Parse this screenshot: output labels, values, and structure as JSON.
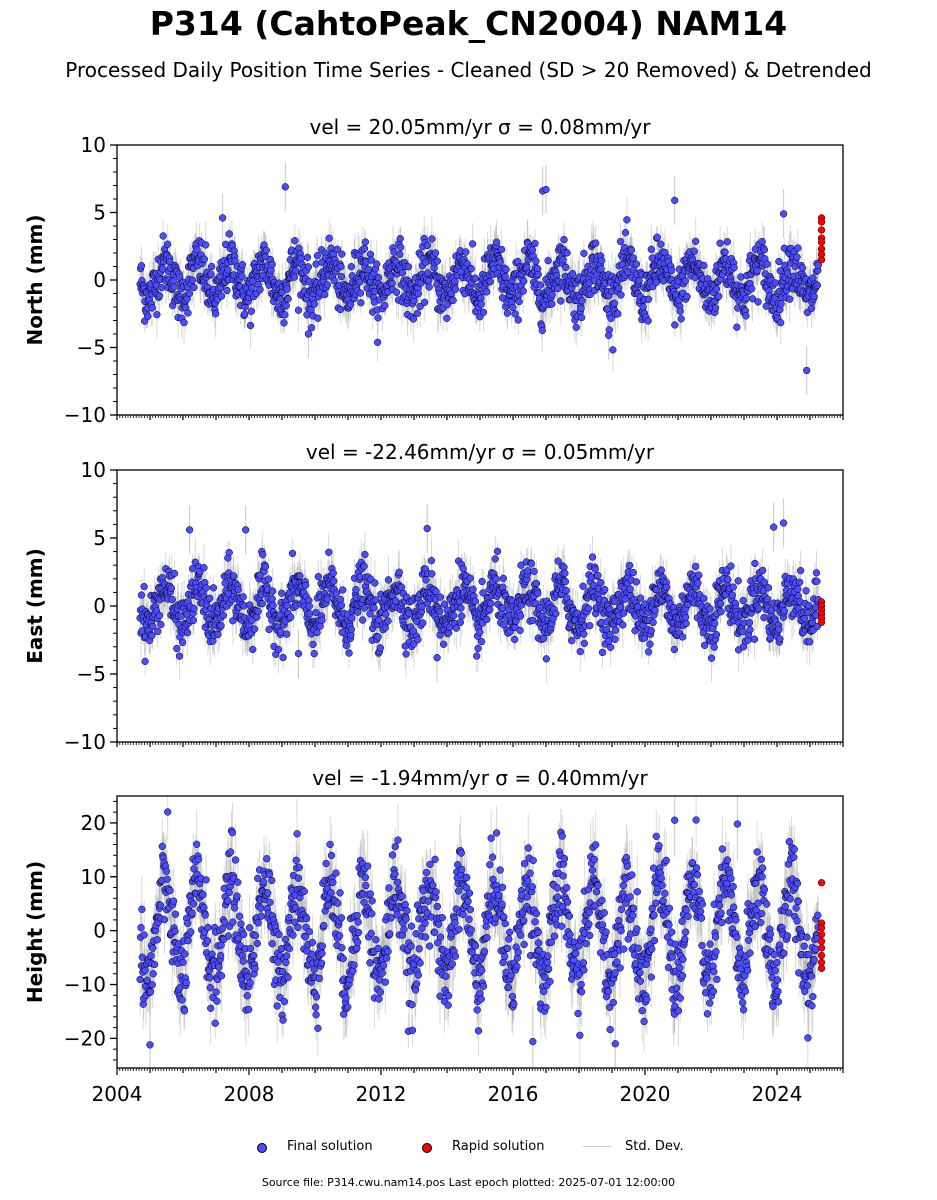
{
  "title": "P314 (CahtoPeak_CN2004) NAM14",
  "subtitle": "Processed Daily Position Time Series - Cleaned (SD > 20 Removed) & Detrended",
  "footer": "Source file: P314.cwu.nam14.pos  Last epoch plotted: 2025-07-01 12:00:00",
  "colors": {
    "final": "#4b4bff",
    "rapid": "#ff0000",
    "stddev": "#c8c8c8",
    "marker_edge": "#000000"
  },
  "legend": {
    "final": "Final solution",
    "rapid": "Rapid solution",
    "stddev": "Std. Dev."
  },
  "chart_data": [
    {
      "type": "scatter",
      "title": "vel = 20.05mm/yr   σ = 0.08mm/yr",
      "ylabel": "North (mm)",
      "xlim": [
        2004.0,
        2026.0
      ],
      "ylim": [
        -10,
        10
      ],
      "yticks": [
        -10,
        -5,
        0,
        5,
        10
      ],
      "yticklabels": [
        "−10",
        "−5",
        "0",
        "5",
        "10"
      ],
      "grid": false,
      "series": [
        {
          "name": "Final solution",
          "note_span": [
            2004.7,
            2025.25
          ],
          "amplitude": 1.3,
          "noise": 1.0,
          "stddev_typical": 1.2,
          "n_points_shown": 1500,
          "outliers": [
            [
              2009.1,
              6.9
            ],
            [
              2016.9,
              6.6
            ],
            [
              2017.0,
              6.7
            ],
            [
              2020.9,
              5.9
            ],
            [
              2024.9,
              -6.7
            ],
            [
              2018.9,
              -4.1
            ],
            [
              2009.8,
              -4.0
            ],
            [
              2024.2,
              4.9
            ],
            [
              2007.2,
              4.6
            ]
          ]
        },
        {
          "name": "Rapid solution",
          "x": [
            2025.35,
            2025.35,
            2025.35,
            2025.35,
            2025.35,
            2025.35,
            2025.35,
            2025.35
          ],
          "y": [
            4.6,
            4.3,
            3.7,
            3.1,
            2.8,
            2.3,
            1.9,
            1.5
          ]
        }
      ]
    },
    {
      "type": "scatter",
      "title": "vel = -22.46mm/yr   σ = 0.05mm/yr",
      "ylabel": "East (mm)",
      "xlim": [
        2004.0,
        2026.0
      ],
      "ylim": [
        -10,
        10
      ],
      "yticks": [
        -10,
        -5,
        0,
        5,
        10
      ],
      "yticklabels": [
        "−10",
        "−5",
        "0",
        "5",
        "10"
      ],
      "grid": false,
      "series": [
        {
          "name": "Final solution",
          "note_span": [
            2004.7,
            2025.25
          ],
          "amplitude": 1.4,
          "noise": 1.0,
          "stddev_typical": 1.2,
          "n_points_shown": 1500,
          "outliers": [
            [
              2006.2,
              5.6
            ],
            [
              2007.9,
              5.6
            ],
            [
              2013.4,
              5.7
            ],
            [
              2024.2,
              6.1
            ],
            [
              2013.7,
              -3.8
            ],
            [
              2009.5,
              -3.5
            ],
            [
              2023.9,
              5.8
            ]
          ]
        },
        {
          "name": "Rapid solution",
          "x": [
            2025.35,
            2025.35,
            2025.35,
            2025.35,
            2025.35,
            2025.35
          ],
          "y": [
            0.3,
            0.0,
            -0.3,
            -0.6,
            -0.9,
            -1.2
          ]
        }
      ]
    },
    {
      "type": "scatter",
      "title": "vel = -1.94mm/yr   σ = 0.40mm/yr",
      "ylabel": "Height (mm)",
      "xlim": [
        2004.0,
        2026.0
      ],
      "ylim": [
        -25.5,
        25
      ],
      "yticks": [
        -20,
        -10,
        0,
        10,
        20
      ],
      "yticklabels": [
        "−20",
        "−10",
        "0",
        "10",
        "20"
      ],
      "xticks": [
        2004,
        2008,
        2012,
        2016,
        2020,
        2024
      ],
      "xticklabels": [
        "2004",
        "2008",
        "2012",
        "2016",
        "2020",
        "2024"
      ],
      "grid": false,
      "series": [
        {
          "name": "Final solution",
          "note_span": [
            2004.7,
            2025.25
          ],
          "amplitude": 9.0,
          "noise": 4.0,
          "stddev_typical": 4.5,
          "n_points_shown": 1500,
          "outliers": [
            [
              2020.9,
              20.5
            ],
            [
              2022.8,
              19.8
            ],
            [
              2005.0,
              -21.2
            ],
            [
              2019.1,
              -21.0
            ],
            [
              2016.6,
              -20.6
            ]
          ]
        },
        {
          "name": "Rapid solution",
          "x": [
            2025.35,
            2025.35,
            2025.35,
            2025.35,
            2025.35,
            2025.35,
            2025.35,
            2025.35,
            2025.35
          ],
          "y": [
            8.9,
            1.4,
            0.5,
            -0.7,
            -2.0,
            -3.2,
            -4.6,
            -5.9,
            -7.0
          ]
        }
      ]
    }
  ]
}
